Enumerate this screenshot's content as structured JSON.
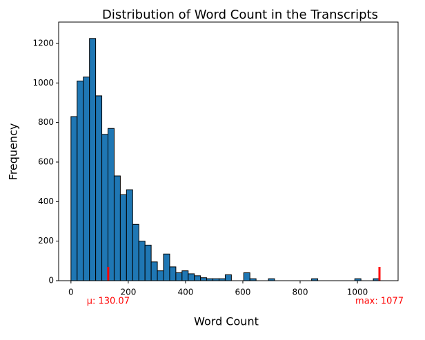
{
  "chart_data": {
    "type": "histogram",
    "title": "Distribution of Word Count in the Transcripts",
    "xlabel": "Word Count",
    "ylabel": "Frequency",
    "color": "#1f77b4",
    "edgecolor": "#000000",
    "bins": [
      0,
      21.54,
      43.08,
      64.62,
      86.16,
      107.7,
      129.24,
      150.78,
      172.32,
      193.86,
      215.4,
      236.94,
      258.48,
      280.02,
      301.56,
      323.1,
      344.64,
      366.18,
      387.72,
      409.26,
      430.8,
      452.34,
      473.88,
      495.42,
      516.96,
      538.5,
      560.04,
      581.58,
      603.12,
      624.66,
      646.2,
      667.74,
      689.28,
      710.82,
      732.36,
      753.9,
      775.44,
      796.98,
      818.52,
      840.06,
      861.6,
      883.14,
      904.68,
      926.22,
      947.76,
      969.3,
      990.84,
      1012.38,
      1033.92,
      1055.46,
      1077
    ],
    "values": [
      830,
      1010,
      1030,
      1225,
      935,
      740,
      770,
      530,
      435,
      460,
      285,
      200,
      180,
      95,
      50,
      135,
      70,
      40,
      50,
      35,
      25,
      15,
      10,
      10,
      10,
      30,
      0,
      0,
      40,
      10,
      0,
      0,
      10,
      0,
      0,
      0,
      0,
      0,
      0,
      10,
      0,
      0,
      0,
      0,
      0,
      0,
      10,
      0,
      0,
      10
    ],
    "xlim": [
      -43,
      1142
    ],
    "ylim": [
      0,
      1308
    ],
    "xticks": [
      0,
      200,
      400,
      600,
      800,
      1000
    ],
    "yticks": [
      0,
      200,
      400,
      600,
      800,
      1000,
      1200
    ],
    "annotations": [
      {
        "label": "μ: 130.07",
        "x": 130.07,
        "color": "#ff0000"
      },
      {
        "label": "max: 1077",
        "x": 1077,
        "color": "#ff0000"
      }
    ]
  }
}
